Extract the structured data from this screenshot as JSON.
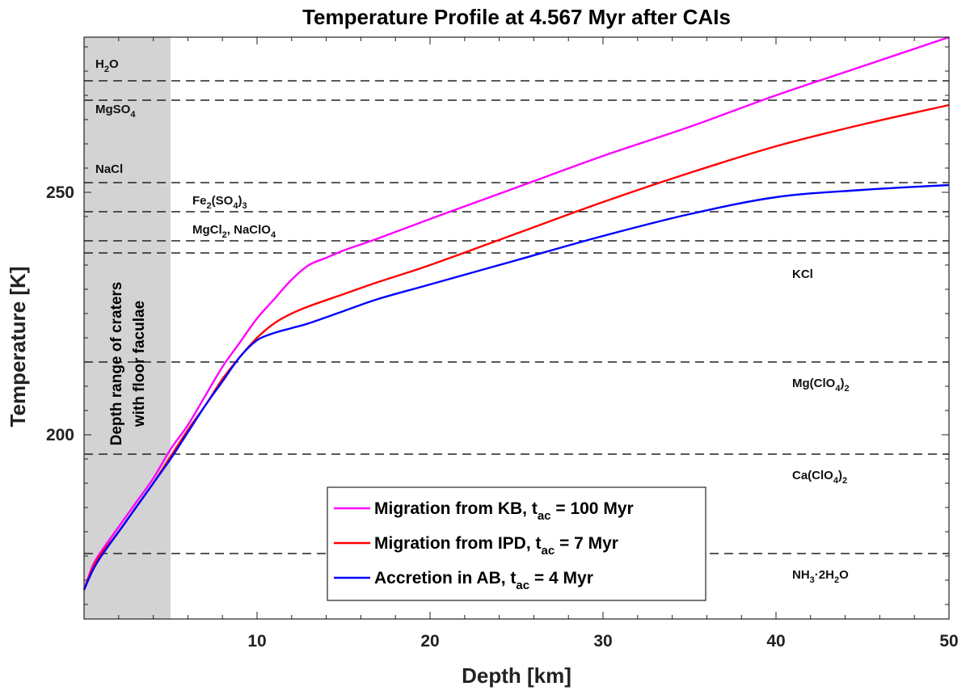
{
  "chart_data": {
    "type": "line",
    "title": "Temperature Profile at 4.567 Myr after CAIs",
    "xlabel": "Depth [km]",
    "ylabel": "Temperature [K]",
    "xlim": [
      0,
      50
    ],
    "ylim": [
      162,
      282
    ],
    "xticks": [
      10,
      20,
      30,
      40,
      50
    ],
    "yticks": [
      200,
      250
    ],
    "shaded_region": {
      "x_range": [
        0,
        5
      ],
      "label_line1": "Depth range of craters",
      "label_line2": "with floor faculae",
      "color": "#d3d3d3"
    },
    "reference_lines": [
      {
        "y": 273,
        "label": "H",
        "sub": "2",
        "suffix": "O",
        "label_side": "left"
      },
      {
        "y": 269,
        "label": "MgSO",
        "sub": "4",
        "suffix": "",
        "label_side": "left"
      },
      {
        "y": 252,
        "label": "NaCl",
        "sub": "",
        "suffix": "",
        "label_side": "left"
      },
      {
        "y": 246,
        "label": "Fe",
        "sub": "2",
        "suffix": "(SO",
        "sub2": "4",
        "suffix2": ")",
        "sub3": "3",
        "label_side": "mid"
      },
      {
        "y": 240,
        "label": "MgCl",
        "sub": "2",
        "suffix": ", NaClO",
        "sub2": "4",
        "label_side": "mid"
      },
      {
        "y": 237.5,
        "label": "KCl",
        "sub": "",
        "suffix": "",
        "label_side": "right"
      },
      {
        "y": 215,
        "label": "Mg(ClO",
        "sub": "4",
        "suffix": ")",
        "sub2": "2",
        "label_side": "right"
      },
      {
        "y": 196,
        "label": "Ca(ClO",
        "sub": "4",
        "suffix": ")",
        "sub2": "2",
        "label_side": "right"
      },
      {
        "y": 175.5,
        "label": "NH",
        "sub": "3",
        "suffix": "·2H",
        "sub2": "2",
        "suffix2": "O",
        "label_side": "right"
      }
    ],
    "series": [
      {
        "name": "Migration from KB, t_ac = 100 Myr",
        "legend_main": "Migration from KB, t",
        "legend_sub": "ac",
        "legend_tail": " = 100 Myr",
        "color": "#ff00ff",
        "x": [
          0,
          0.5,
          1,
          2,
          3,
          4,
          5,
          6,
          7,
          8,
          9,
          10,
          11,
          12,
          13,
          14,
          15,
          17,
          20,
          25,
          30,
          35,
          40,
          45,
          50
        ],
        "y": [
          168,
          173,
          176,
          181,
          186,
          191,
          197,
          202,
          208,
          214,
          219,
          224,
          228,
          232,
          235,
          236.5,
          238,
          240.5,
          244.5,
          251,
          257.5,
          263.5,
          270,
          276,
          282
        ]
      },
      {
        "name": "Migration from IPD, t_ac = 7 Myr",
        "legend_main": "Migration from IPD, t",
        "legend_sub": "ac",
        "legend_tail": " = 7 Myr",
        "color": "#ff0000",
        "x": [
          0,
          0.5,
          1,
          2,
          3,
          4,
          5,
          6,
          7,
          8,
          9,
          10,
          11,
          12,
          13,
          15,
          17,
          20,
          25,
          30,
          35,
          40,
          45,
          50
        ],
        "y": [
          168,
          172.5,
          175.5,
          180,
          185,
          190,
          195.5,
          201,
          206,
          211.5,
          216,
          220,
          223,
          225,
          226.5,
          229,
          231.5,
          235,
          241.5,
          248,
          254,
          259.5,
          264,
          268
        ]
      },
      {
        "name": "Accretion in AB, t_ac = 4 Myr",
        "legend_main": "Accretion in AB, t",
        "legend_sub": "ac",
        "legend_tail": " = 4 Myr",
        "color": "#0000ff",
        "x": [
          0,
          0.5,
          1,
          2,
          3,
          4,
          5,
          6,
          7,
          8,
          9,
          10,
          11,
          12,
          13,
          15,
          17,
          20,
          25,
          30,
          35,
          40,
          45,
          50
        ],
        "y": [
          168,
          172,
          175,
          180,
          185,
          190,
          195,
          200.5,
          206,
          211,
          216,
          219.5,
          221,
          222,
          223,
          225.5,
          228,
          231,
          236,
          241,
          245.5,
          249,
          250.5,
          251.5
        ]
      }
    ]
  }
}
